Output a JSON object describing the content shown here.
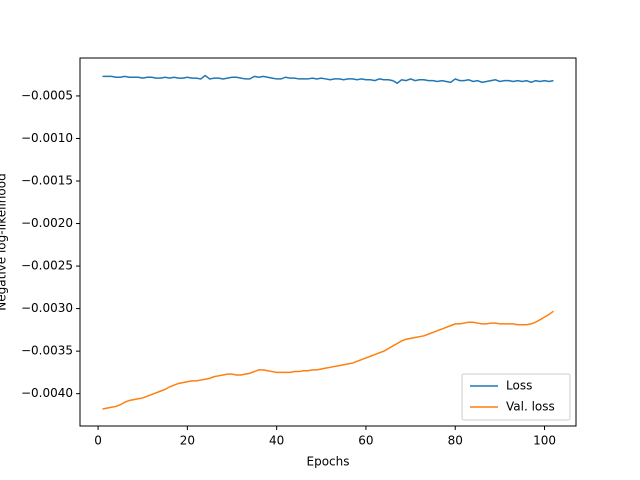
{
  "chart_data": {
    "type": "line",
    "xlabel": "Epochs",
    "ylabel": "Negative log-likelihood",
    "x": [
      1,
      2,
      3,
      4,
      5,
      6,
      7,
      8,
      9,
      10,
      11,
      12,
      13,
      14,
      15,
      16,
      17,
      18,
      19,
      20,
      21,
      22,
      23,
      24,
      25,
      26,
      27,
      28,
      29,
      30,
      31,
      32,
      33,
      34,
      35,
      36,
      37,
      38,
      39,
      40,
      41,
      42,
      43,
      44,
      45,
      46,
      47,
      48,
      49,
      50,
      51,
      52,
      53,
      54,
      55,
      56,
      57,
      58,
      59,
      60,
      61,
      62,
      63,
      64,
      65,
      66,
      67,
      68,
      69,
      70,
      71,
      72,
      73,
      74,
      75,
      76,
      77,
      78,
      79,
      80,
      81,
      82,
      83,
      84,
      85,
      86,
      87,
      88,
      89,
      90,
      91,
      92,
      93,
      94,
      95,
      96,
      97,
      98,
      99,
      100,
      101,
      102
    ],
    "series": [
      {
        "name": "Loss",
        "color": "#1f77b4",
        "values": [
          -0.00027,
          -0.00027,
          -0.00027,
          -0.00028,
          -0.00028,
          -0.00027,
          -0.00028,
          -0.00028,
          -0.00028,
          -0.00029,
          -0.00028,
          -0.00028,
          -0.00029,
          -0.00029,
          -0.00028,
          -0.00029,
          -0.00028,
          -0.00029,
          -0.00029,
          -0.00028,
          -0.00029,
          -0.00029,
          -0.0003,
          -0.00026,
          -0.0003,
          -0.00029,
          -0.00029,
          -0.0003,
          -0.00029,
          -0.00028,
          -0.00028,
          -0.00029,
          -0.0003,
          -0.0003,
          -0.00027,
          -0.00028,
          -0.00027,
          -0.00028,
          -0.00029,
          -0.0003,
          -0.0003,
          -0.00028,
          -0.00029,
          -0.00029,
          -0.0003,
          -0.0003,
          -0.0003,
          -0.00029,
          -0.0003,
          -0.00029,
          -0.0003,
          -0.00031,
          -0.0003,
          -0.0003,
          -0.00031,
          -0.0003,
          -0.0003,
          -0.00031,
          -0.0003,
          -0.00031,
          -0.00031,
          -0.00032,
          -0.0003,
          -0.00031,
          -0.00031,
          -0.00032,
          -0.00035,
          -0.00031,
          -0.00032,
          -0.0003,
          -0.00032,
          -0.00031,
          -0.00031,
          -0.00032,
          -0.00032,
          -0.00033,
          -0.00032,
          -0.00033,
          -0.00034,
          -0.0003,
          -0.00032,
          -0.00032,
          -0.00031,
          -0.00033,
          -0.00032,
          -0.00034,
          -0.00033,
          -0.00032,
          -0.00031,
          -0.00033,
          -0.00032,
          -0.00032,
          -0.00033,
          -0.00032,
          -0.00033,
          -0.00032,
          -0.00034,
          -0.00032,
          -0.00033,
          -0.00032,
          -0.00033,
          -0.00032
        ]
      },
      {
        "name": "Val. loss",
        "color": "#ff7f0e",
        "values": [
          -0.00418,
          -0.00417,
          -0.00416,
          -0.00415,
          -0.00413,
          -0.0041,
          -0.00408,
          -0.00407,
          -0.00406,
          -0.00405,
          -0.00403,
          -0.00401,
          -0.00399,
          -0.00397,
          -0.00395,
          -0.00392,
          -0.0039,
          -0.00388,
          -0.00387,
          -0.00386,
          -0.00385,
          -0.00385,
          -0.00384,
          -0.00383,
          -0.00382,
          -0.0038,
          -0.00379,
          -0.00378,
          -0.00377,
          -0.00377,
          -0.00378,
          -0.00378,
          -0.00377,
          -0.00376,
          -0.00374,
          -0.00372,
          -0.00372,
          -0.00373,
          -0.00374,
          -0.00375,
          -0.00375,
          -0.00375,
          -0.00375,
          -0.00374,
          -0.00374,
          -0.00373,
          -0.00373,
          -0.00372,
          -0.00372,
          -0.00371,
          -0.0037,
          -0.00369,
          -0.00368,
          -0.00367,
          -0.00366,
          -0.00365,
          -0.00364,
          -0.00362,
          -0.0036,
          -0.00358,
          -0.00356,
          -0.00354,
          -0.00352,
          -0.0035,
          -0.00347,
          -0.00344,
          -0.00341,
          -0.00338,
          -0.00336,
          -0.00335,
          -0.00334,
          -0.00333,
          -0.00332,
          -0.0033,
          -0.00328,
          -0.00326,
          -0.00324,
          -0.00322,
          -0.0032,
          -0.00318,
          -0.00318,
          -0.00317,
          -0.00316,
          -0.00316,
          -0.00317,
          -0.00318,
          -0.00318,
          -0.00317,
          -0.00317,
          -0.00318,
          -0.00318,
          -0.00318,
          -0.00318,
          -0.00319,
          -0.00319,
          -0.00319,
          -0.00318,
          -0.00316,
          -0.00313,
          -0.0031,
          -0.00307,
          -0.00303
        ]
      }
    ],
    "xlim": [
      -4.05,
      107.05
    ],
    "xticks": [
      0,
      20,
      40,
      60,
      80,
      100
    ],
    "ylim": [
      -0.00438,
      -5.4e-05
    ],
    "yticks": [
      {
        "value": -0.0005,
        "label": "−0.0005"
      },
      {
        "value": -0.001,
        "label": "−0.0010"
      },
      {
        "value": -0.0015,
        "label": "−0.0015"
      },
      {
        "value": -0.002,
        "label": "−0.0020"
      },
      {
        "value": -0.0025,
        "label": "−0.0025"
      },
      {
        "value": -0.003,
        "label": "−0.0030"
      },
      {
        "value": -0.0035,
        "label": "−0.0035"
      },
      {
        "value": -0.004,
        "label": "−0.0040"
      }
    ],
    "grid": false,
    "legend": "lower right"
  }
}
